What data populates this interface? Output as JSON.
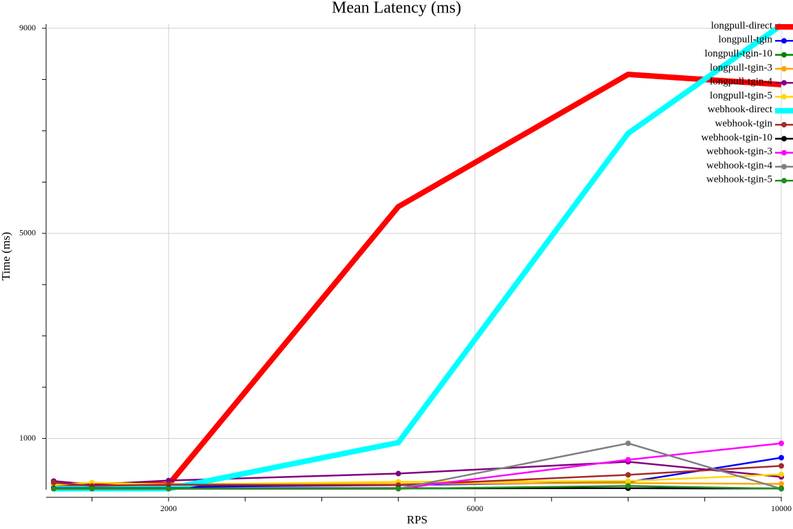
{
  "chart_data": {
    "type": "line",
    "title": "Mean Latency (ms)",
    "xlabel": "RPS",
    "ylabel": "Time (ms)",
    "x": [
      500,
      1000,
      2000,
      5000,
      8000,
      10000
    ],
    "xlim": [
      500,
      10000
    ],
    "ylim": [
      0,
      9000
    ],
    "xticks": [
      2000,
      6000,
      10000
    ],
    "yticks": [
      1000,
      5000,
      9000
    ],
    "x_minor_ticks": [
      1000,
      2000,
      3000,
      4000,
      5000,
      6000,
      7000,
      8000,
      9000,
      10000
    ],
    "y_minor_ticks": [
      1000,
      2000,
      3000,
      4000,
      5000,
      6000,
      7000,
      8000,
      9000
    ],
    "grid": true,
    "legend": "upper right",
    "series": [
      {
        "name": "longpull-direct",
        "color": "#ff0000",
        "width": 8,
        "values": [
          90,
          90,
          100,
          5520,
          8100,
          7900
        ]
      },
      {
        "name": "longpull-tgin",
        "color": "#0000ff",
        "width": 2.5,
        "values": [
          60,
          60,
          60,
          90,
          150,
          625
        ]
      },
      {
        "name": "longpull-tgin-10",
        "color": "#008000",
        "width": 2.5,
        "values": [
          25,
          25,
          25,
          25,
          30,
          25
        ]
      },
      {
        "name": "longpull-tgin-3",
        "color": "#ffa500",
        "width": 2.5,
        "values": [
          115,
          115,
          115,
          115,
          130,
          115
        ]
      },
      {
        "name": "longpull-tgin-4",
        "color": "#800080",
        "width": 2.5,
        "values": [
          170,
          100,
          180,
          315,
          545,
          250
        ]
      },
      {
        "name": "longpull-tgin-5",
        "color": "#ffd700",
        "width": 2.5,
        "values": [
          90,
          140,
          100,
          155,
          170,
          300
        ]
      },
      {
        "name": "webhook-direct",
        "color": "#00ffff",
        "width": 8,
        "values": [
          20,
          20,
          20,
          920,
          6950,
          9060
        ]
      },
      {
        "name": "webhook-tgin",
        "color": "#a52a2a",
        "width": 2.5,
        "values": [
          140,
          75,
          100,
          90,
          290,
          465
        ]
      },
      {
        "name": "webhook-tgin-10",
        "color": "#000000",
        "width": 2.5,
        "values": [
          30,
          30,
          30,
          30,
          30,
          25
        ]
      },
      {
        "name": "webhook-tgin-3",
        "color": "#ff00ff",
        "width": 2.5,
        "values": [
          20,
          20,
          20,
          20,
          585,
          905
        ]
      },
      {
        "name": "webhook-tgin-4",
        "color": "#808080",
        "width": 2.5,
        "values": [
          20,
          20,
          20,
          20,
          905,
          20
        ]
      },
      {
        "name": "webhook-tgin-5",
        "color": "#228b22",
        "width": 2.5,
        "values": [
          20,
          20,
          20,
          20,
          75,
          20
        ]
      }
    ]
  }
}
